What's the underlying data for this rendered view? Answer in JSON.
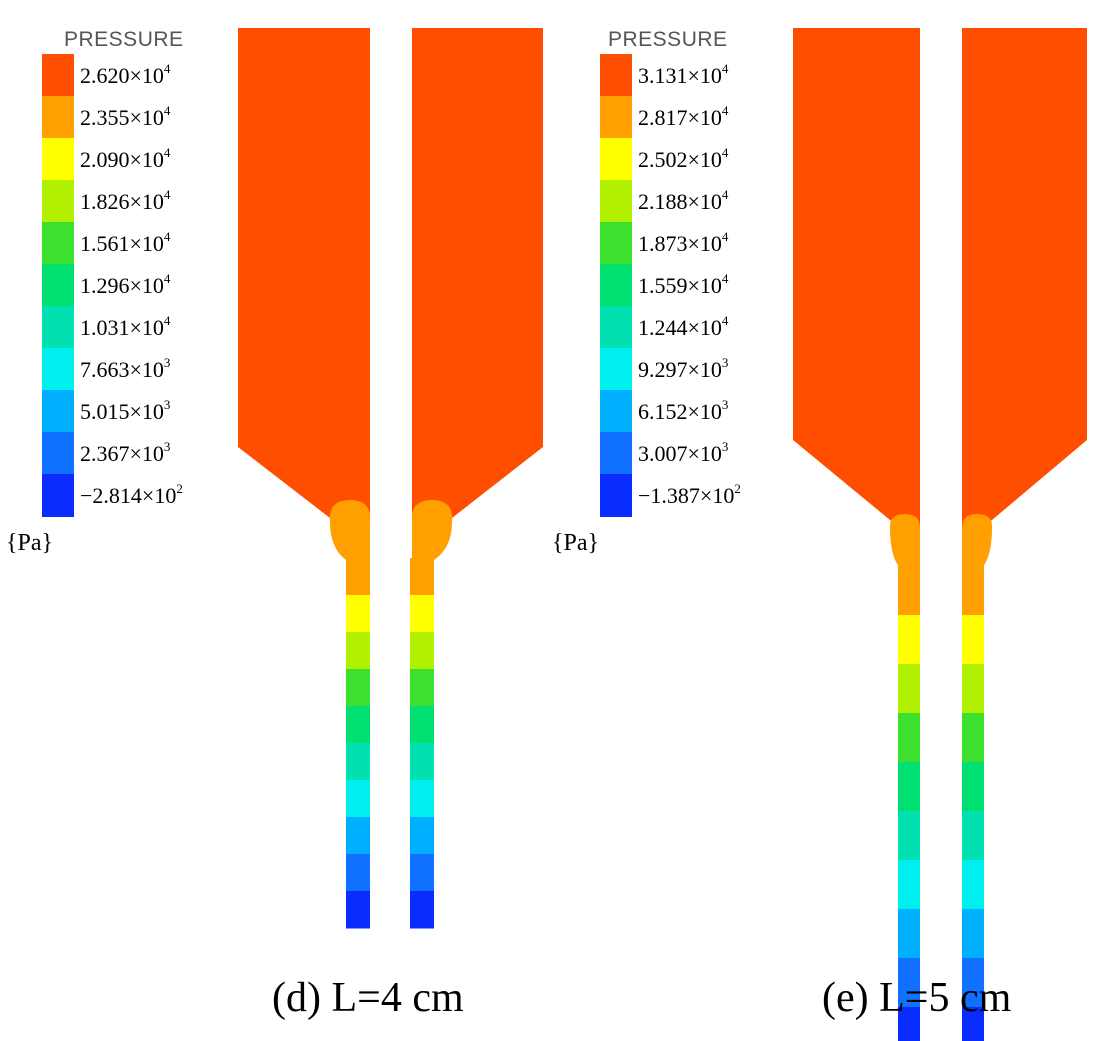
{
  "panels": [
    {
      "id": "d",
      "legend_title": "PRESSURE",
      "unit": "{Pa}",
      "caption": "(d) L=4 cm",
      "ticks": [
        {
          "mant": "2.620",
          "exp": "4"
        },
        {
          "mant": "2.355",
          "exp": "4"
        },
        {
          "mant": "2.090",
          "exp": "4"
        },
        {
          "mant": "1.826",
          "exp": "4"
        },
        {
          "mant": "1.561",
          "exp": "4"
        },
        {
          "mant": "1.296",
          "exp": "4"
        },
        {
          "mant": "1.031",
          "exp": "4"
        },
        {
          "mant": "7.663",
          "exp": "3"
        },
        {
          "mant": "5.015",
          "exp": "3"
        },
        {
          "mant": "2.367",
          "exp": "3"
        },
        {
          "mant": "−2.814",
          "exp": "2"
        }
      ]
    },
    {
      "id": "e",
      "legend_title": "PRESSURE",
      "unit": "{Pa}",
      "caption": "(e) L=5 cm",
      "ticks": [
        {
          "mant": "3.131",
          "exp": "4"
        },
        {
          "mant": "2.817",
          "exp": "4"
        },
        {
          "mant": "2.502",
          "exp": "4"
        },
        {
          "mant": "2.188",
          "exp": "4"
        },
        {
          "mant": "1.873",
          "exp": "4"
        },
        {
          "mant": "1.559",
          "exp": "4"
        },
        {
          "mant": "1.244",
          "exp": "4"
        },
        {
          "mant": "9.297",
          "exp": "3"
        },
        {
          "mant": "6.152",
          "exp": "3"
        },
        {
          "mant": "3.007",
          "exp": "3"
        },
        {
          "mant": "−1.387",
          "exp": "2"
        }
      ]
    }
  ],
  "colormap": [
    "#ff4e00",
    "#ffa000",
    "#ffff00",
    "#b0f000",
    "#3ee030",
    "#00e070",
    "#00e0b0",
    "#00f0f0",
    "#00b0ff",
    "#1070ff",
    "#0a2cff"
  ],
  "times_sign": "×",
  "base": "10"
}
